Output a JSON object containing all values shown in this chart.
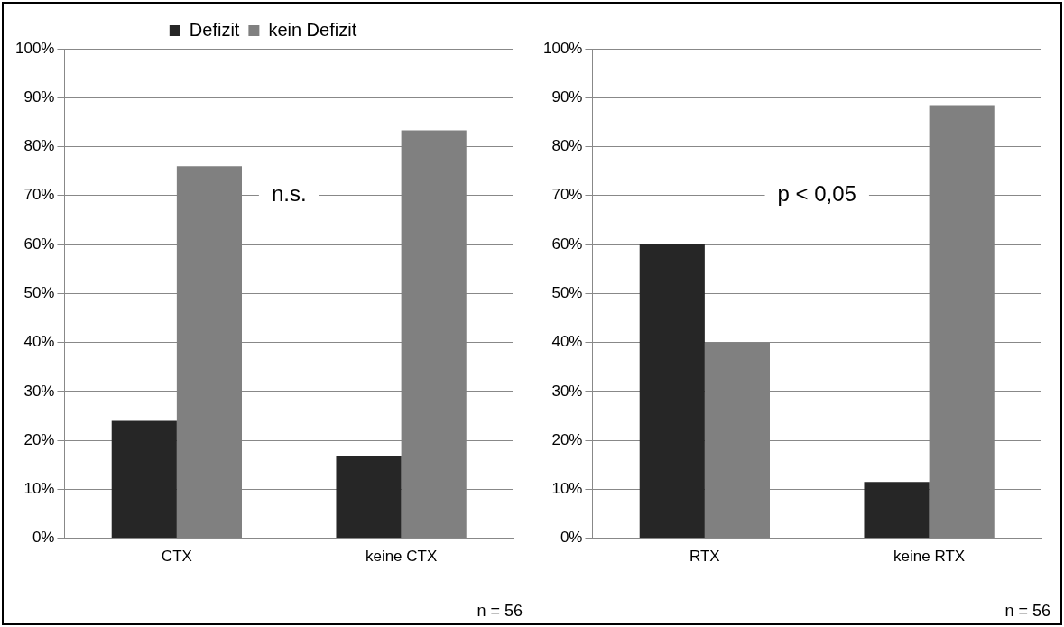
{
  "chart_data": [
    {
      "type": "bar",
      "categories": [
        "CTX",
        "keine CTX"
      ],
      "series": [
        {
          "name": "Defizit",
          "color": "#262626",
          "values": [
            24,
            16.7
          ]
        },
        {
          "name": "kein Defizit",
          "color": "#808080",
          "values": [
            76,
            83.3
          ]
        }
      ],
      "ylim": [
        0,
        100
      ],
      "yticks": [
        {
          "value": 0,
          "label": "0%"
        },
        {
          "value": 10,
          "label": "10%"
        },
        {
          "value": 20,
          "label": "20%"
        },
        {
          "value": 30,
          "label": "30%"
        },
        {
          "value": 40,
          "label": "40%"
        },
        {
          "value": 50,
          "label": "50%"
        },
        {
          "value": 60,
          "label": "60%"
        },
        {
          "value": 70,
          "label": "70%"
        },
        {
          "value": 80,
          "label": "80%"
        },
        {
          "value": 90,
          "label": "90%"
        },
        {
          "value": 100,
          "label": "100%"
        }
      ],
      "grid": "y",
      "legend": "top",
      "annotations": [
        "n.s.",
        "n = 56"
      ]
    },
    {
      "type": "bar",
      "categories": [
        "RTX",
        "keine RTX"
      ],
      "series": [
        {
          "color": "#262626",
          "values": [
            60,
            11.5
          ]
        },
        {
          "color": "#808080",
          "values": [
            40,
            88.5
          ]
        }
      ],
      "ylim": [
        0,
        100
      ],
      "yticks": [
        {
          "value": 0,
          "label": "0%"
        },
        {
          "value": 10,
          "label": "10%"
        },
        {
          "value": 20,
          "label": "20%"
        },
        {
          "value": 30,
          "label": "30%"
        },
        {
          "value": 40,
          "label": "40%"
        },
        {
          "value": 50,
          "label": "50%"
        },
        {
          "value": 60,
          "label": "60%"
        },
        {
          "value": 70,
          "label": "70%"
        },
        {
          "value": 80,
          "label": "80%"
        },
        {
          "value": 90,
          "label": "90%"
        },
        {
          "value": 100,
          "label": "100%"
        }
      ],
      "grid": "y",
      "annotations": [
        "p < 0,05",
        "n = 56"
      ]
    }
  ]
}
